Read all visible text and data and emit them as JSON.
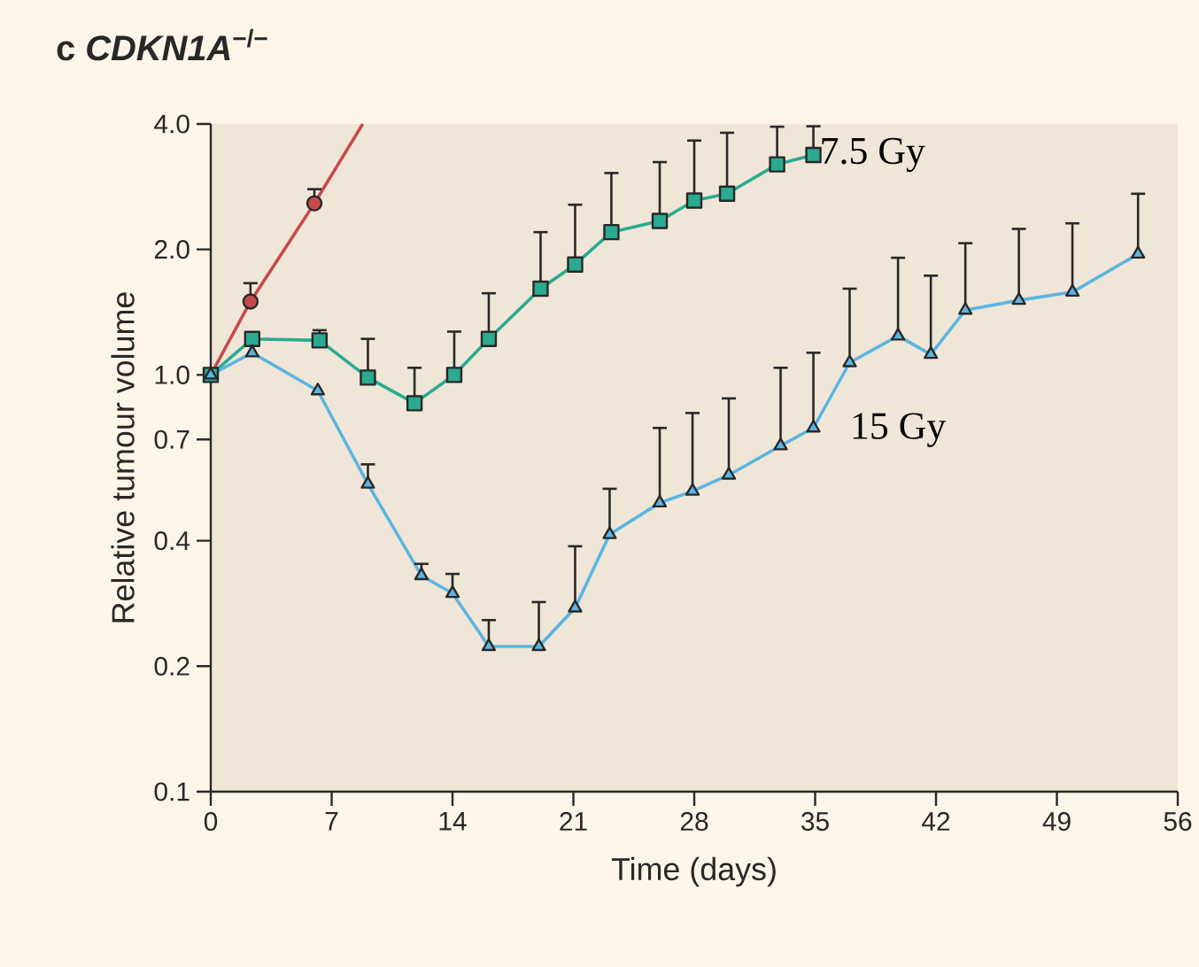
{
  "chart_data": {
    "type": "line",
    "title": "c *CDKN1A*$^{−/−}$",
    "xlabel": "Time (days)",
    "ylabel": "Relative tumour volume",
    "log": "y",
    "grid": false,
    "xlim": [
      0,
      56
    ],
    "xticks": [
      0,
      7,
      14,
      21,
      28,
      35,
      42,
      49,
      56
    ],
    "ylim": [
      0.1,
      4.0
    ],
    "yticks": [
      0.1,
      0.2,
      0.4,
      0.7,
      {
        "value": 1.0,
        "label": "1.0"
      },
      {
        "value": 2.0,
        "label": "2.0"
      },
      {
        "value": 4.0,
        "label": "4.0"
      }
    ],
    "series": [
      {
        "color": "#c8494b",
        "marker": "circle",
        "x": [
          0,
          2.3,
          6
        ],
        "values": [
          1.0,
          1.5,
          2.58
        ],
        "errors": [
          null,
          [
            1.5,
            1.66
          ],
          [
            2.58,
            2.79
          ]
        ]
      },
      {
        "type": "line",
        "color": "#c8494b",
        "marker": "none",
        "x": [
          6,
          8.8
        ],
        "values": [
          2.58,
          4.0
        ]
      },
      {
        "name": "7.5 Gy",
        "color": "#2aaa90",
        "marker": "square",
        "x": [
          0,
          2.4,
          6.3,
          9.1,
          11.8,
          14.1,
          16.1,
          19.1,
          21.1,
          23.2,
          26.0,
          28.0,
          29.9,
          32.8,
          34.9
        ],
        "values": [
          1.0,
          1.22,
          1.21,
          0.985,
          0.855,
          1.0,
          1.22,
          1.61,
          1.84,
          2.2,
          2.34,
          2.62,
          2.72,
          3.2,
          3.37
        ],
        "errors": [
          null,
          null,
          [
            1.21,
            1.28
          ],
          [
            0.985,
            1.22
          ],
          [
            0.855,
            1.04
          ],
          [
            1.0,
            1.27
          ],
          [
            1.22,
            1.57
          ],
          [
            1.61,
            2.2
          ],
          [
            1.84,
            2.56
          ],
          [
            2.2,
            3.05
          ],
          [
            2.34,
            3.24
          ],
          [
            2.62,
            3.65
          ],
          [
            2.72,
            3.81
          ],
          [
            3.2,
            3.94
          ],
          [
            3.37,
            3.95
          ]
        ]
      },
      {
        "name": "15 Gy",
        "color": "#5bb5e2",
        "marker": "triangle",
        "x": [
          0,
          2.4,
          6.2,
          9.1,
          12.2,
          14.0,
          16.1,
          19.0,
          21.1,
          23.1,
          26.0,
          27.9,
          30.0,
          33.0,
          34.9,
          37.0,
          39.8,
          41.7,
          43.7,
          46.8,
          49.9,
          53.7
        ],
        "values": [
          1.0,
          1.13,
          0.916,
          0.547,
          0.33,
          0.299,
          0.223,
          0.223,
          0.276,
          0.414,
          0.493,
          0.526,
          0.575,
          0.676,
          0.746,
          1.07,
          1.24,
          1.12,
          1.43,
          1.51,
          1.58,
          1.95
        ],
        "errors": [
          null,
          null,
          null,
          [
            0.547,
            0.61
          ],
          [
            0.33,
            0.352
          ],
          [
            0.299,
            0.333
          ],
          [
            0.223,
            0.258
          ],
          [
            0.223,
            0.285
          ],
          [
            0.276,
            0.388
          ],
          [
            0.414,
            0.533
          ],
          [
            0.493,
            0.746
          ],
          [
            0.526,
            0.81
          ],
          [
            0.575,
            0.878
          ],
          [
            0.676,
            1.04
          ],
          [
            0.746,
            1.13
          ],
          [
            1.07,
            1.61
          ],
          [
            1.24,
            1.91
          ],
          [
            1.12,
            1.73
          ],
          [
            1.43,
            2.07
          ],
          [
            1.51,
            2.24
          ],
          [
            1.58,
            2.31
          ],
          [
            1.95,
            2.72
          ]
        ]
      }
    ]
  }
}
